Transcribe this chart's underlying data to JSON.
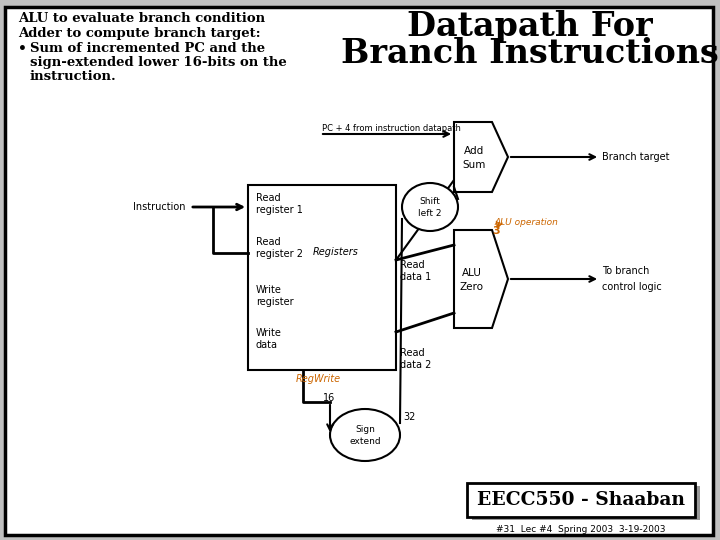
{
  "bg_color": "#c0c0c0",
  "slide_bg": "#ffffff",
  "border_color": "#000000",
  "title_line1": "Datapath For",
  "title_line2": "Branch Instructions",
  "title_color": "#000000",
  "title_fontsize": 24,
  "left_text_line1": "ALU to evaluate branch condition",
  "left_text_line2": "Adder to compute branch target:",
  "left_bullet": "Sum of incremented PC and the",
  "left_bullet2": "sign-extended lower 16-bits on the",
  "left_bullet3": "instruction.",
  "footer_main": "EECC550 - Shaaban",
  "footer_sub": "#31  Lec #4  Spring 2003  3-19-2003",
  "orange_color": "#cc6600",
  "black_color": "#000000"
}
